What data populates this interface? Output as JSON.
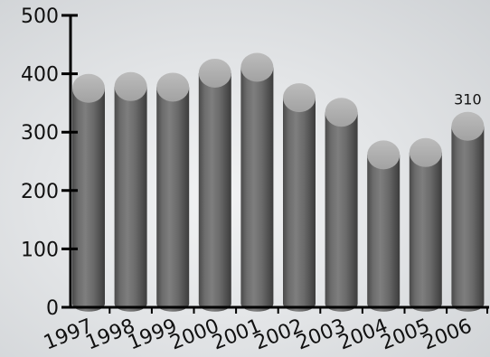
{
  "chart_data": {
    "type": "bar",
    "categories": [
      "1997",
      "1998",
      "1999",
      "2000",
      "2001",
      "2002",
      "2003",
      "2004",
      "2005",
      "2006"
    ],
    "values": [
      375,
      378,
      377,
      401,
      411,
      359,
      334,
      261,
      265,
      310
    ],
    "ylim": [
      0,
      500
    ],
    "yticks": [
      0,
      100,
      200,
      300,
      400,
      500
    ],
    "title": "",
    "xlabel": "",
    "ylabel": "",
    "data_labels": [
      {
        "category": "2006",
        "text": "310"
      }
    ],
    "style": {
      "bar_shape": "cylinder",
      "bar_color": "#6b6b6b",
      "bar_top_color": "#aaaaaa",
      "axis_color": "#000000",
      "grid": false,
      "legend": "none"
    }
  }
}
